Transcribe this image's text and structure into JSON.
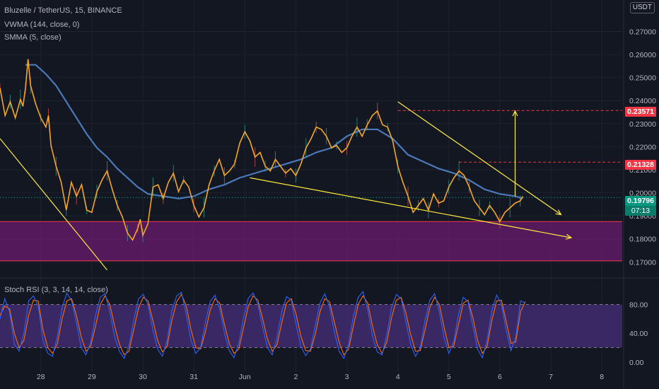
{
  "chart_data": {
    "type": "line",
    "title": "Bluzelle / TetherUS, 15, BINANCE",
    "currency": "USDT",
    "indicators": [
      {
        "name": "VWMA",
        "label": "VWMA (144, close, 0)",
        "color": "#4a78b8"
      },
      {
        "name": "SMMA",
        "label": "SMMA (5, close)",
        "color": "#f5a623"
      }
    ],
    "x_ticks": [
      "28",
      "29",
      "30",
      "31",
      "Jun",
      "2",
      "3",
      "4",
      "5",
      "6",
      "7",
      "8"
    ],
    "x_tick_pos": [
      -0.2,
      0.8,
      1.8,
      2.8,
      3.8,
      4.8,
      5.8,
      6.8,
      7.8,
      8.8,
      9.8,
      10.8
    ],
    "x_range": [
      -1,
      11.2
    ],
    "y_ticks": [
      "0.27000",
      "0.26000",
      "0.25000",
      "0.24000",
      "0.23000",
      "0.22000",
      "0.21000",
      "0.20000",
      "0.19000",
      "0.18000",
      "0.17000"
    ],
    "ylim": [
      0.1655,
      0.2775
    ],
    "grid": true,
    "price_series": [
      [
        -1.0,
        0.2455
      ],
      [
        -0.9,
        0.2335
      ],
      [
        -0.8,
        0.2395
      ],
      [
        -0.7,
        0.2325
      ],
      [
        -0.6,
        0.2405
      ],
      [
        -0.55,
        0.2375
      ],
      [
        -0.5,
        0.2455
      ],
      [
        -0.45,
        0.258
      ],
      [
        -0.4,
        0.2465
      ],
      [
        -0.3,
        0.2385
      ],
      [
        -0.2,
        0.2325
      ],
      [
        -0.1,
        0.2285
      ],
      [
        -0.05,
        0.2335
      ],
      [
        0.0,
        0.2205
      ],
      [
        0.1,
        0.2115
      ],
      [
        0.2,
        0.2045
      ],
      [
        0.3,
        0.1925
      ],
      [
        0.4,
        0.2045
      ],
      [
        0.5,
        0.1985
      ],
      [
        0.6,
        0.2035
      ],
      [
        0.7,
        0.1925
      ],
      [
        0.8,
        0.1915
      ],
      [
        0.9,
        0.2005
      ],
      [
        1.0,
        0.2055
      ],
      [
        1.1,
        0.2095
      ],
      [
        1.2,
        0.2015
      ],
      [
        1.3,
        0.1945
      ],
      [
        1.4,
        0.1895
      ],
      [
        1.5,
        0.1825
      ],
      [
        1.6,
        0.1795
      ],
      [
        1.7,
        0.1845
      ],
      [
        1.75,
        0.1885
      ],
      [
        1.8,
        0.1815
      ],
      [
        1.9,
        0.1865
      ],
      [
        2.0,
        0.2025
      ],
      [
        2.1,
        0.2035
      ],
      [
        2.2,
        0.1975
      ],
      [
        2.3,
        0.2045
      ],
      [
        2.4,
        0.2085
      ],
      [
        2.5,
        0.2005
      ],
      [
        2.6,
        0.2055
      ],
      [
        2.7,
        0.2025
      ],
      [
        2.8,
        0.1945
      ],
      [
        2.9,
        0.1895
      ],
      [
        3.0,
        0.1935
      ],
      [
        3.1,
        0.2035
      ],
      [
        3.2,
        0.2095
      ],
      [
        3.3,
        0.2145
      ],
      [
        3.4,
        0.2075
      ],
      [
        3.5,
        0.2095
      ],
      [
        3.6,
        0.2125
      ],
      [
        3.7,
        0.2215
      ],
      [
        3.8,
        0.2265
      ],
      [
        3.9,
        0.2225
      ],
      [
        4.0,
        0.2155
      ],
      [
        4.1,
        0.2175
      ],
      [
        4.2,
        0.2115
      ],
      [
        4.3,
        0.2095
      ],
      [
        4.4,
        0.2145
      ],
      [
        4.5,
        0.2115
      ],
      [
        4.6,
        0.2085
      ],
      [
        4.7,
        0.2105
      ],
      [
        4.8,
        0.2075
      ],
      [
        4.9,
        0.2125
      ],
      [
        5.0,
        0.2195
      ],
      [
        5.1,
        0.2235
      ],
      [
        5.2,
        0.2285
      ],
      [
        5.3,
        0.2275
      ],
      [
        5.4,
        0.2245
      ],
      [
        5.5,
        0.2195
      ],
      [
        5.6,
        0.2205
      ],
      [
        5.7,
        0.2175
      ],
      [
        5.8,
        0.2195
      ],
      [
        5.9,
        0.2245
      ],
      [
        6.0,
        0.2285
      ],
      [
        6.1,
        0.2245
      ],
      [
        6.2,
        0.2295
      ],
      [
        6.3,
        0.2335
      ],
      [
        6.4,
        0.2355
      ],
      [
        6.5,
        0.2295
      ],
      [
        6.6,
        0.2285
      ],
      [
        6.7,
        0.2225
      ],
      [
        6.8,
        0.2115
      ],
      [
        6.9,
        0.2045
      ],
      [
        7.0,
        0.1985
      ],
      [
        7.1,
        0.1915
      ],
      [
        7.2,
        0.1945
      ],
      [
        7.3,
        0.1975
      ],
      [
        7.4,
        0.1925
      ],
      [
        7.5,
        0.1995
      ],
      [
        7.6,
        0.1955
      ],
      [
        7.7,
        0.1965
      ],
      [
        7.8,
        0.2025
      ],
      [
        7.9,
        0.2065
      ],
      [
        8.0,
        0.2095
      ],
      [
        8.1,
        0.2075
      ],
      [
        8.2,
        0.2025
      ],
      [
        8.3,
        0.1965
      ],
      [
        8.4,
        0.1935
      ],
      [
        8.5,
        0.1905
      ],
      [
        8.6,
        0.1945
      ],
      [
        8.7,
        0.1915
      ],
      [
        8.8,
        0.1875
      ],
      [
        8.9,
        0.1915
      ],
      [
        9.0,
        0.1935
      ],
      [
        9.1,
        0.1955
      ],
      [
        9.2,
        0.1965
      ],
      [
        9.25,
        0.1985
      ]
    ],
    "vwma_series": [
      [
        -0.5,
        0.2555
      ],
      [
        -0.3,
        0.2555
      ],
      [
        -0.1,
        0.2515
      ],
      [
        0.1,
        0.2465
      ],
      [
        0.3,
        0.2395
      ],
      [
        0.5,
        0.2325
      ],
      [
        0.7,
        0.2255
      ],
      [
        0.9,
        0.2195
      ],
      [
        1.1,
        0.2155
      ],
      [
        1.3,
        0.2105
      ],
      [
        1.5,
        0.2065
      ],
      [
        1.7,
        0.2025
      ],
      [
        1.9,
        0.1995
      ],
      [
        2.2,
        0.1985
      ],
      [
        2.5,
        0.1975
      ],
      [
        2.8,
        0.1985
      ],
      [
        3.1,
        0.2015
      ],
      [
        3.4,
        0.2035
      ],
      [
        3.7,
        0.2065
      ],
      [
        4.0,
        0.2085
      ],
      [
        4.3,
        0.2105
      ],
      [
        4.6,
        0.2125
      ],
      [
        4.9,
        0.2145
      ],
      [
        5.2,
        0.2175
      ],
      [
        5.5,
        0.2195
      ],
      [
        5.8,
        0.2245
      ],
      [
        6.1,
        0.2275
      ],
      [
        6.4,
        0.2275
      ],
      [
        6.7,
        0.2235
      ],
      [
        7.0,
        0.2165
      ],
      [
        7.3,
        0.2135
      ],
      [
        7.6,
        0.2105
      ],
      [
        7.9,
        0.2085
      ],
      [
        8.2,
        0.2055
      ],
      [
        8.5,
        0.2015
      ],
      [
        8.8,
        0.1995
      ],
      [
        9.1,
        0.1985
      ],
      [
        9.25,
        0.1975
      ]
    ],
    "trendlines": [
      {
        "from": [
          -1.0,
          0.2235
        ],
        "to": [
          1.1,
          0.1665
        ]
      },
      {
        "from": [
          3.9,
          0.2065
        ],
        "to": [
          10.2,
          0.1805
        ]
      },
      {
        "from": [
          6.8,
          0.2395
        ],
        "to": [
          10.0,
          0.1905
        ]
      }
    ],
    "target_arrow": {
      "x": 9.1,
      "from": 0.1985,
      "to": 0.2355
    },
    "support_zone": [
      0.1705,
      0.1875
    ],
    "levels": [
      {
        "price": 0.23571,
        "from_x": 6.8
      },
      {
        "price": 0.21328,
        "from_x": 8.0
      },
      {
        "price": 0.19796,
        "from_x": -1.0
      }
    ],
    "price_tags": {
      "target": "0.23571",
      "resistance": "0.21328",
      "last_price": "0.19796",
      "countdown": "07:13"
    },
    "oscillator": {
      "label": "Stoch RSI (3, 3, 14, 14, close)",
      "y_ticks": [
        "80.00",
        "40.00",
        "0.00"
      ],
      "ylim": [
        -8,
        110
      ],
      "band": [
        20,
        80
      ],
      "k_color": "#2962ff",
      "d_color": "#ff6d00",
      "k_values": [
        60,
        88,
        70,
        25,
        15,
        40,
        85,
        92,
        78,
        30,
        12,
        8,
        35,
        75,
        96,
        85,
        55,
        20,
        10,
        28,
        65,
        90,
        95,
        70,
        35,
        15,
        5,
        22,
        58,
        88,
        94,
        80,
        45,
        18,
        8,
        30,
        72,
        92,
        97,
        66,
        30,
        12,
        20,
        55,
        84,
        93,
        74,
        40,
        16,
        6,
        26,
        62,
        89,
        96,
        81,
        48,
        20,
        10,
        34,
        70,
        91,
        86,
        52,
        22,
        9,
        18,
        50,
        82,
        95,
        77,
        42,
        15,
        5,
        25,
        64,
        90,
        98,
        73,
        36,
        14,
        10,
        38,
        76,
        94,
        88,
        56,
        24,
        8,
        20,
        58,
        86,
        95,
        70,
        33,
        12,
        28,
        66,
        90,
        84,
        50,
        18,
        6,
        30,
        72,
        93,
        80,
        44,
        16,
        35,
        85,
        82
      ],
      "d_values": [
        65,
        78,
        74,
        40,
        20,
        30,
        65,
        86,
        85,
        45,
        20,
        12,
        25,
        60,
        85,
        88,
        65,
        35,
        15,
        22,
        50,
        80,
        92,
        80,
        50,
        25,
        10,
        15,
        45,
        75,
        90,
        85,
        58,
        30,
        14,
        22,
        58,
        84,
        94,
        78,
        45,
        20,
        18,
        42,
        72,
        88,
        82,
        52,
        26,
        12,
        18,
        48,
        78,
        92,
        86,
        60,
        32,
        15,
        24,
        55,
        82,
        88,
        66,
        36,
        16,
        15,
        38,
        70,
        88,
        84,
        56,
        28,
        10,
        18,
        50,
        80,
        92,
        82,
        50,
        24,
        12,
        28,
        62,
        86,
        90,
        68,
        38,
        15,
        16,
        45,
        76,
        90,
        80,
        48,
        20,
        22,
        52,
        82,
        86,
        62,
        30,
        12,
        22,
        58,
        85,
        86,
        56,
        26,
        28,
        70,
        84
      ]
    },
    "colors": {
      "background": "#131722",
      "price_line": "#f5a623",
      "vwma": "#4a78b8",
      "trendline": "#ffeb3b",
      "support_zone": "#6a1b6f",
      "level_red": "#f23645",
      "last_price": "#26a69a",
      "stoch_band": "#3f2a6b"
    }
  }
}
